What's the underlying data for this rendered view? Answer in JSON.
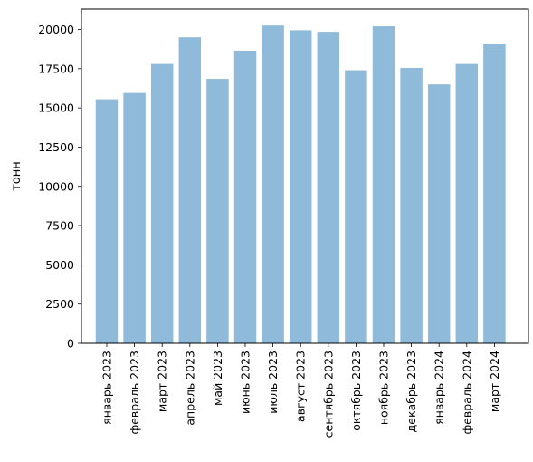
{
  "chart_data": {
    "type": "bar",
    "title": "",
    "xlabel": "",
    "ylabel": "тонн",
    "categories": [
      "январь 2023",
      "февраль 2023",
      "март 2023",
      "апрель 2023",
      "май 2023",
      "июнь 2023",
      "июль 2023",
      "август 2023",
      "сентябрь 2023",
      "октябрь 2023",
      "ноябрь 2023",
      "декабрь 2023",
      "январь 2024",
      "февраль 2024",
      "март 2024"
    ],
    "values": [
      15550,
      15950,
      17800,
      19500,
      16850,
      18650,
      20250,
      19950,
      19850,
      17400,
      20200,
      17550,
      16500,
      17800,
      19050
    ],
    "ylim": [
      0,
      21300
    ],
    "yticks": [
      0,
      2500,
      5000,
      7500,
      10000,
      12500,
      15000,
      17500,
      20000
    ],
    "ytick_labels": [
      "0",
      "2500",
      "5000",
      "7500",
      "10000",
      "12500",
      "15000",
      "17500",
      "20000"
    ],
    "grid": false,
    "bar_color": "#8fbad9"
  }
}
